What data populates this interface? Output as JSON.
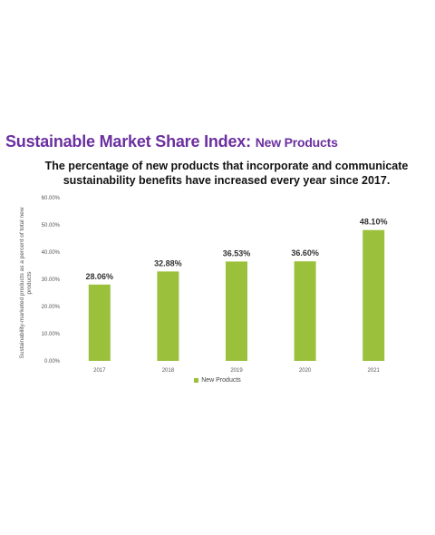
{
  "header": {
    "title_main": "Sustainable Market Share Index:",
    "title_sub": "New Products",
    "subtitle": "The percentage of new products that incorporate and communicate sustainability benefits have increased every year since 2017."
  },
  "colors": {
    "title": "#6b2fa0",
    "bar": "#9bc13c"
  },
  "chart_data": {
    "type": "bar",
    "categories": [
      "2017",
      "2018",
      "2019",
      "2020",
      "2021"
    ],
    "series": [
      {
        "name": "New Products",
        "values": [
          28.06,
          32.88,
          36.53,
          36.6,
          48.1
        ]
      }
    ],
    "data_labels": [
      "28.06%",
      "32.88%",
      "36.53%",
      "36.60%",
      "48.10%"
    ],
    "ylabel": "Sustainability-marketed products as a percent of total new products",
    "xlabel": "",
    "ylim": [
      0,
      60
    ],
    "yticks": [
      "0.00%",
      "10.00%",
      "20.00%",
      "30.00%",
      "40.00%",
      "50.00%",
      "60.00%"
    ],
    "legend": "bottom",
    "grid": false
  }
}
